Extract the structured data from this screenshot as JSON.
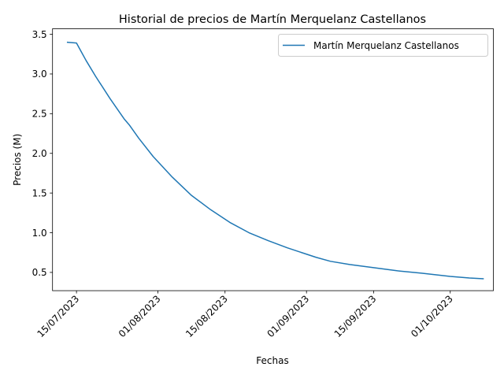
{
  "chart_data": {
    "type": "line",
    "title": "Historial de precios de Martín Merquelanz Castellanos",
    "xlabel": "Fechas",
    "ylabel": "Precios (M)",
    "xlim": [
      "2023-07-10",
      "2023-10-10"
    ],
    "ylim": [
      0.27,
      3.57
    ],
    "x_ticks": [
      "2023-07-15",
      "2023-08-01",
      "2023-08-15",
      "2023-09-01",
      "2023-09-15",
      "2023-10-01"
    ],
    "x_tick_labels": [
      "15/07/2023",
      "01/08/2023",
      "15/08/2023",
      "01/09/2023",
      "15/09/2023",
      "01/10/2023"
    ],
    "y_ticks": [
      0.5,
      1.0,
      1.5,
      2.0,
      2.5,
      3.0,
      3.5
    ],
    "y_tick_labels": [
      "0.5",
      "1.0",
      "1.5",
      "2.0",
      "2.5",
      "3.0",
      "3.5"
    ],
    "legend_position": "top-right",
    "grid": false,
    "series": [
      {
        "name": "Martín Merquelanz Castellanos",
        "color": "#1f77b4",
        "x": [
          "2023-07-13",
          "2023-07-15",
          "2023-07-16",
          "2023-07-17",
          "2023-07-19",
          "2023-07-22",
          "2023-07-25",
          "2023-07-26",
          "2023-07-28",
          "2023-07-31",
          "2023-08-04",
          "2023-08-08",
          "2023-08-12",
          "2023-08-16",
          "2023-08-20",
          "2023-08-24",
          "2023-08-28",
          "2023-09-01",
          "2023-09-03",
          "2023-09-06",
          "2023-09-10",
          "2023-09-15",
          "2023-09-20",
          "2023-09-25",
          "2023-10-01",
          "2023-10-05",
          "2023-10-08"
        ],
        "y": [
          3.4,
          3.39,
          3.28,
          3.17,
          2.97,
          2.69,
          2.43,
          2.36,
          2.19,
          1.96,
          1.7,
          1.47,
          1.29,
          1.13,
          1.0,
          0.9,
          0.81,
          0.73,
          0.69,
          0.64,
          0.6,
          0.56,
          0.52,
          0.49,
          0.45,
          0.43,
          0.42
        ]
      }
    ]
  }
}
